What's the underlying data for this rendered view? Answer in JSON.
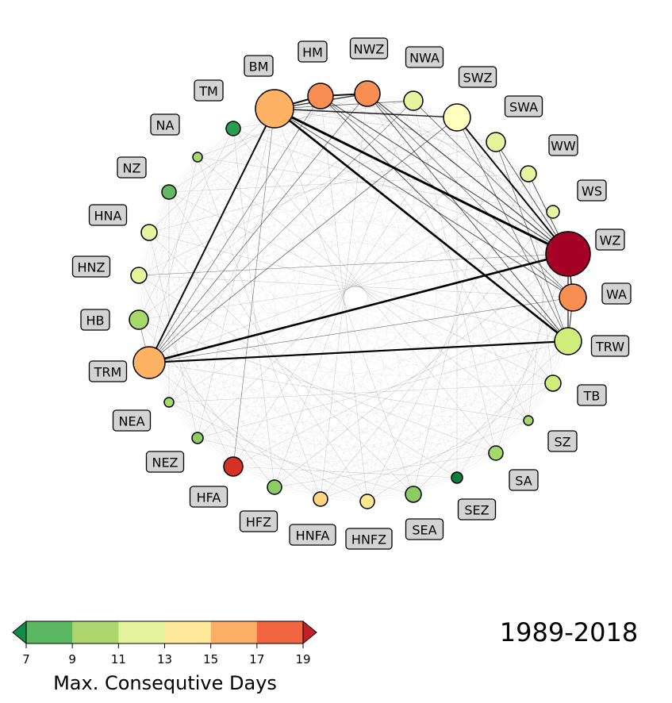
{
  "title_period": "1989-2018",
  "colorbar": {
    "label": "Max. Consequtive Days",
    "ticks": [
      "7",
      "9",
      "11",
      "13",
      "15",
      "17",
      "19"
    ],
    "colors": [
      "#5ab862",
      "#add66f",
      "#e4f39c",
      "#fee89a",
      "#fbaf64",
      "#f06640"
    ],
    "under_color": "#138b48",
    "over_color": "#c41e27"
  },
  "nodes": [
    {
      "name": "BM",
      "value": 15.5,
      "color": "#fdb264"
    },
    {
      "name": "HM",
      "value": 16.5,
      "color": "#f98e52"
    },
    {
      "name": "NWZ",
      "value": 16.5,
      "color": "#f98e52"
    },
    {
      "name": "NWA",
      "value": 11.5,
      "color": "#e6f59d"
    },
    {
      "name": "SWZ",
      "value": 13,
      "color": "#ffffbf"
    },
    {
      "name": "SWA",
      "value": 11.5,
      "color": "#e6f59d"
    },
    {
      "name": "WW",
      "value": 11.5,
      "color": "#e6f59d"
    },
    {
      "name": "WS",
      "value": 11.5,
      "color": "#e6f59d"
    },
    {
      "name": "WZ",
      "value": 19,
      "color": "#a50026"
    },
    {
      "name": "WA",
      "value": 16.5,
      "color": "#f98e52"
    },
    {
      "name": "TRW",
      "value": 10.5,
      "color": "#d0ec7a"
    },
    {
      "name": "TB",
      "value": 10.5,
      "color": "#d0ec7a"
    },
    {
      "name": "SZ",
      "value": 9.5,
      "color": "#a6d96a"
    },
    {
      "name": "SA",
      "value": 9.5,
      "color": "#a6d96a"
    },
    {
      "name": "SEZ",
      "value": 7,
      "color": "#0e7d40"
    },
    {
      "name": "SEA",
      "value": 9,
      "color": "#8ccc62"
    },
    {
      "name": "HNFZ",
      "value": 13.5,
      "color": "#fee791"
    },
    {
      "name": "HNFA",
      "value": 14,
      "color": "#fed47f"
    },
    {
      "name": "HFZ",
      "value": 9,
      "color": "#8ccc62"
    },
    {
      "name": "HFA",
      "value": 18,
      "color": "#d73027"
    },
    {
      "name": "NEZ",
      "value": 9,
      "color": "#8ccc62"
    },
    {
      "name": "NEA",
      "value": 9.5,
      "color": "#a6d96a"
    },
    {
      "name": "TRM",
      "value": 15.5,
      "color": "#fdb264"
    },
    {
      "name": "HB",
      "value": 9.5,
      "color": "#a6d96a"
    },
    {
      "name": "HNZ",
      "value": 11.5,
      "color": "#e6f59d"
    },
    {
      "name": "HNA",
      "value": 11.5,
      "color": "#e6f59d"
    },
    {
      "name": "NZ",
      "value": 8,
      "color": "#62b863"
    },
    {
      "name": "NA",
      "value": 9.5,
      "color": "#a6d96a"
    },
    {
      "name": "TM",
      "value": 7.5,
      "color": "#279f53"
    }
  ],
  "edges": [
    [
      "BM",
      "WZ",
      3
    ],
    [
      "BM",
      "TRW",
      2.6
    ],
    [
      "TRM",
      "WZ",
      2.6
    ],
    [
      "TRM",
      "TRW",
      2.2
    ],
    [
      "BM",
      "TRM",
      2
    ],
    [
      "SWZ",
      "WZ",
      2
    ],
    [
      "BM",
      "HM",
      2
    ],
    [
      "HM",
      "NWZ",
      2
    ],
    [
      "BM",
      "SWZ",
      1.6
    ],
    [
      "BM",
      "NWZ",
      1.4
    ],
    [
      "WZ",
      "WA",
      1.6
    ],
    [
      "WZ",
      "TRW",
      1.4
    ],
    [
      "WA",
      "TRW",
      1.2
    ],
    [
      "NWZ",
      "WZ",
      1.2
    ],
    [
      "HM",
      "WZ",
      1.1
    ],
    [
      "NWZ",
      "TRW",
      1
    ],
    [
      "HM",
      "TRW",
      1
    ],
    [
      "SWA",
      "WZ",
      1
    ],
    [
      "WW",
      "WZ",
      1
    ],
    [
      "BM",
      "WA",
      1
    ],
    [
      "TRM",
      "SWZ",
      0.8
    ],
    [
      "TRM",
      "NWZ",
      0.7
    ],
    [
      "TRM",
      "HM",
      0.7
    ],
    [
      "HFA",
      "BM",
      0.6
    ],
    [
      "TRM",
      "NWA",
      0.6
    ],
    [
      "NWA",
      "WZ",
      0.8
    ],
    [
      "SWZ",
      "TRW",
      0.8
    ],
    [
      "NWZ",
      "WA",
      0.8
    ],
    [
      "HM",
      "WA",
      0.8
    ],
    [
      "BM",
      "NWA",
      0.8
    ],
    [
      "TRM",
      "HB",
      0.6
    ],
    [
      "HNZ",
      "WZ",
      0.5
    ],
    [
      "TRM",
      "WA",
      0.6
    ],
    [
      "SWA",
      "TRW",
      0.7
    ]
  ]
}
